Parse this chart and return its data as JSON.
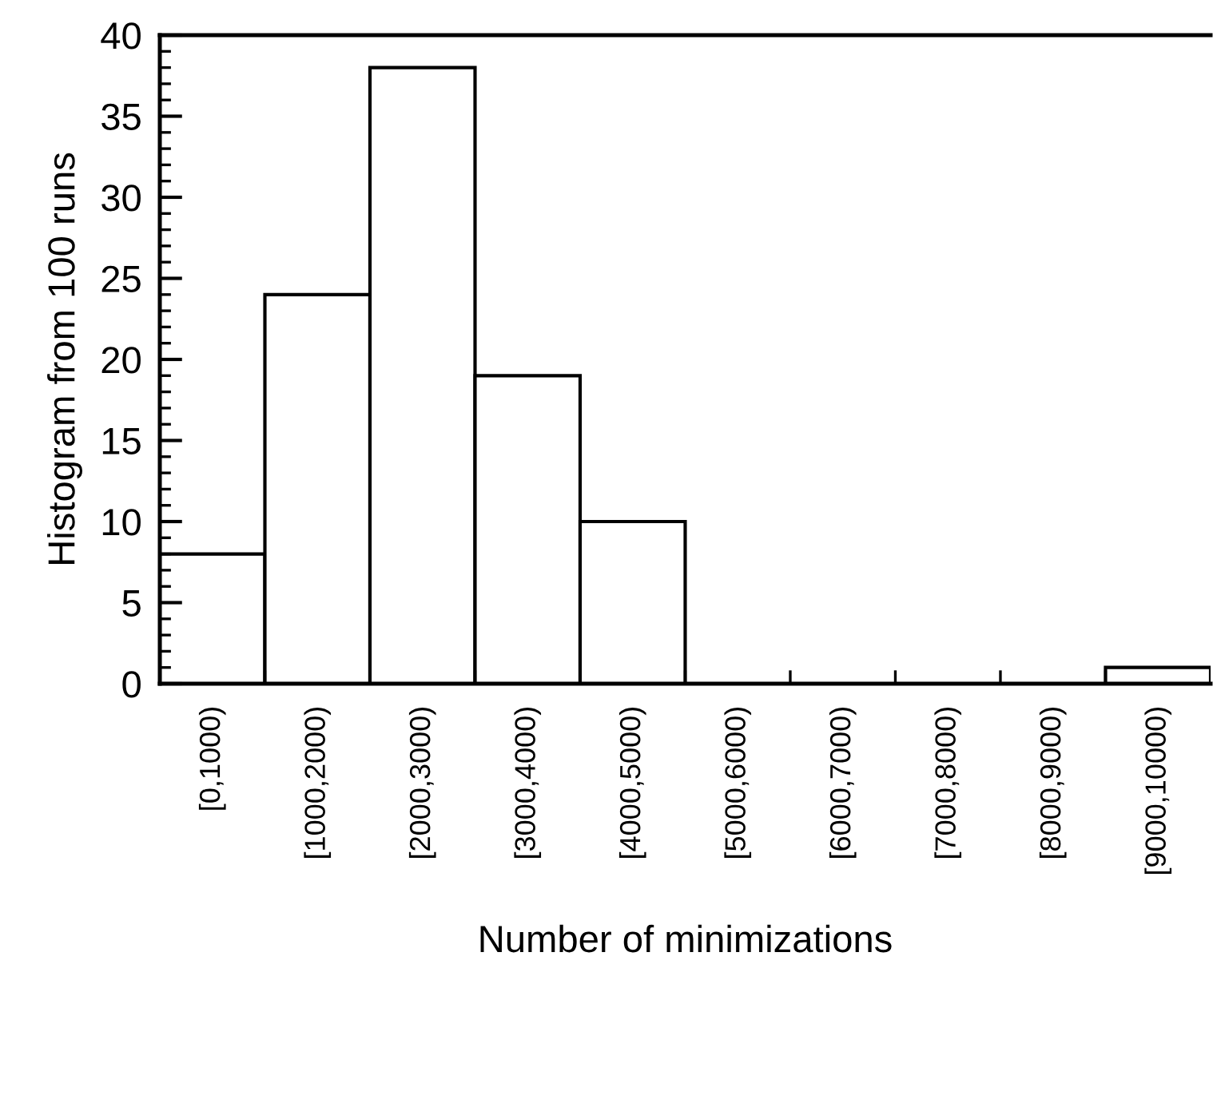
{
  "chart_data": {
    "type": "bar",
    "xlabel": "Number of minimizations",
    "ylabel": "Histogram from 100 runs",
    "categories": [
      "[0,1000)",
      "[1000,2000)",
      "[2000,3000)",
      "[3000,4000)",
      "[4000,5000)",
      "[5000,6000)",
      "[6000,7000)",
      "[7000,8000)",
      "[8000,9000)",
      "[9000,10000)"
    ],
    "values": [
      8,
      24,
      38,
      19,
      10,
      0,
      0,
      0,
      0,
      1
    ],
    "color": "#ffffff",
    "ylim": [
      0,
      40
    ],
    "yticks": [
      0,
      5,
      10,
      15,
      20,
      25,
      30,
      35,
      40
    ],
    "grid": false
  }
}
